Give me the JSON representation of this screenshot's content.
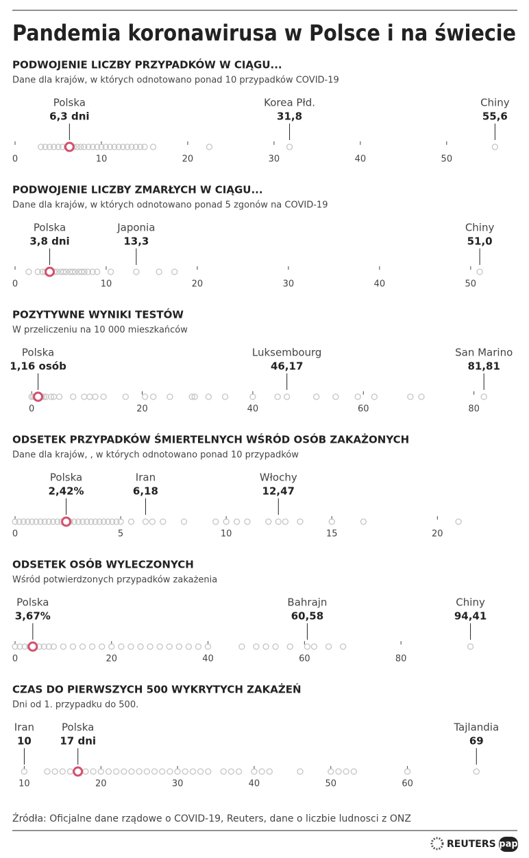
{
  "title": "Pandemia koronawirusa w Polsce i na świecie",
  "source": "Źródła: Oficjalne dane rządowe o COVID-19, Reuters, dane o liczbie ludnosci z ONZ",
  "logos": [
    "REUTERS",
    "pap"
  ],
  "chart_data": [
    {
      "type": "strip",
      "title": "PODWOJENIE LICZBY PRZYPADKÓW W CIĄGU...",
      "subtitle": "Dane dla krajów, w których odnotowano ponad 10 przypadków COVID-19",
      "values": [
        3,
        3.5,
        4,
        4.5,
        5,
        5.5,
        6,
        6.8,
        7.2,
        7.6,
        8,
        8.5,
        9,
        9.5,
        10,
        10.5,
        11,
        11.5,
        12,
        12.5,
        13,
        13.5,
        14,
        14.5,
        15,
        16,
        22.5
      ],
      "color": "#c4c4c4",
      "annotations": [
        {
          "name": "Polska",
          "value": 6.3,
          "value_label": "6,3 dni",
          "color": "#d4506e"
        },
        {
          "name": "Korea Płd.",
          "value": 31.8,
          "value_label": "31,8",
          "color": "#c4c4c4"
        },
        {
          "name": "Chiny",
          "value": 55.6,
          "value_label": "55,6",
          "color": "#c4c4c4"
        }
      ],
      "xlim": [
        0,
        57
      ],
      "xticks": [
        0,
        10,
        20,
        30,
        40,
        50
      ]
    },
    {
      "type": "strip",
      "title": "PODWOJENIE LICZBY ZMARŁYCH W CIĄGU...",
      "subtitle": "Dane dla krajów, w których odnotowano ponad 5 zgonów na COVID-19",
      "values": [
        1.5,
        2.5,
        3,
        3.3,
        3.6,
        4.3,
        4.6,
        5,
        5.3,
        5.6,
        6,
        6.3,
        6.6,
        7,
        7.3,
        7.6,
        8,
        8.5,
        9,
        10.5,
        15.8,
        17.5
      ],
      "color": "#c4c4c4",
      "annotations": [
        {
          "name": "Polska",
          "value": 3.8,
          "value_label": "3,8 dni",
          "color": "#d4506e"
        },
        {
          "name": "Japonia",
          "value": 13.3,
          "value_label": "13,3",
          "color": "#c4c4c4"
        },
        {
          "name": "Chiny",
          "value": 51,
          "value_label": "51,0",
          "color": "#c4c4c4"
        }
      ],
      "xlim": [
        0,
        54
      ],
      "xticks": [
        0,
        10,
        20,
        30,
        40,
        50
      ]
    },
    {
      "type": "strip",
      "title": "POZYTYWNE WYNIKI TESTÓW",
      "subtitle": "W przeliczeniu na 10 000 mieszkańców",
      "values": [
        0,
        0.3,
        0.6,
        0.9,
        1.5,
        1.8,
        2.2,
        2.6,
        3.5,
        4,
        5,
        7.5,
        9.5,
        10.5,
        11.5,
        13,
        17,
        20.5,
        22,
        25,
        29,
        29.5,
        32,
        35,
        40,
        44.5,
        51.5,
        55,
        59,
        62,
        68.5,
        70.5
      ],
      "color": "#c4c4c4",
      "annotations": [
        {
          "name": "Polska",
          "value": 1.16,
          "value_label": "1,16 osób",
          "color": "#d4506e"
        },
        {
          "name": "Luksembourg",
          "value": 46.17,
          "value_label": "46,17",
          "color": "#c4c4c4"
        },
        {
          "name": "San Marino",
          "value": 81.81,
          "value_label": "81,81",
          "color": "#c4c4c4"
        }
      ],
      "xlim": [
        -3,
        86
      ],
      "xticks": [
        0,
        20,
        40,
        60,
        80
      ]
    },
    {
      "type": "strip",
      "title": "ODSETEK PRZYPADKÓW ŚMIERTELNYCH WŚRÓD OSÓB ZAKAŻONYCH",
      "subtitle": "Dane dla krajów, , w których odnotowano ponad 10 przypadków",
      "values": [
        0,
        0.2,
        0.4,
        0.6,
        0.8,
        1,
        1.2,
        1.4,
        1.6,
        1.8,
        2,
        2.2,
        2.6,
        2.8,
        3,
        3.2,
        3.4,
        3.6,
        3.8,
        4,
        4.2,
        4.4,
        4.6,
        4.8,
        5,
        5.5,
        6.5,
        7,
        8,
        9.5,
        10,
        10.5,
        11,
        12,
        12.8,
        13.5,
        15,
        16.5,
        21
      ],
      "color": "#c4c4c4",
      "annotations": [
        {
          "name": "Polska",
          "value": 2.42,
          "value_label": "2,42%",
          "color": "#d4506e"
        },
        {
          "name": "Iran",
          "value": 6.18,
          "value_label": "6,18",
          "color": "#c4c4c4"
        },
        {
          "name": "Włochy",
          "value": 12.47,
          "value_label": "12,47",
          "color": "#c4c4c4"
        }
      ],
      "xlim": [
        0,
        23.3
      ],
      "xticks": [
        0,
        5,
        10,
        15,
        20
      ]
    },
    {
      "type": "strip",
      "title": "ODSETEK OSÓB WYLECZONYCH",
      "subtitle": "Wśród potwierdzonych przypadków zakażenia",
      "values": [
        0,
        1,
        2,
        3,
        5,
        6,
        7,
        8,
        10,
        12,
        14,
        16,
        18,
        20,
        22,
        24,
        26,
        28,
        30,
        32,
        34,
        36,
        38,
        40,
        47,
        50,
        52,
        54,
        57,
        62,
        65,
        68
      ],
      "color": "#c4c4c4",
      "annotations": [
        {
          "name": "Polska",
          "value": 3.67,
          "value_label": "3,67%",
          "color": "#d4506e"
        },
        {
          "name": "Bahrajn",
          "value": 60.58,
          "value_label": "60,58",
          "color": "#c4c4c4"
        },
        {
          "name": "Chiny",
          "value": 94.41,
          "value_label": "94,41",
          "color": "#c4c4c4"
        }
      ],
      "xlim": [
        0,
        102
      ],
      "xticks": [
        0,
        20,
        40,
        60,
        80
      ]
    },
    {
      "type": "strip",
      "title": "CZAS DO PIERWSZYCH 500 WYKRYTYCH ZAKAŻEŃ",
      "subtitle": "Dni od 1. przypadku do 500.",
      "values": [
        13,
        14,
        15,
        16,
        18,
        19,
        20,
        21,
        22,
        23,
        24,
        25,
        26,
        27,
        28,
        29,
        30,
        31,
        32,
        33,
        34,
        36,
        37,
        38,
        40,
        41,
        42,
        46,
        50,
        51,
        52,
        53,
        60
      ],
      "color": "#c4c4c4",
      "annotations": [
        {
          "name": "Iran",
          "value": 10,
          "value_label": "10",
          "color": "#c4c4c4"
        },
        {
          "name": "Polska",
          "value": 17,
          "value_label": "17 dni",
          "color": "#d4506e"
        },
        {
          "name": "Tajlandia",
          "value": 69,
          "value_label": "69",
          "color": "#c4c4c4"
        }
      ],
      "xlim": [
        8.8,
        73
      ],
      "xticks": [
        10,
        20,
        30,
        40,
        50,
        60
      ]
    }
  ]
}
